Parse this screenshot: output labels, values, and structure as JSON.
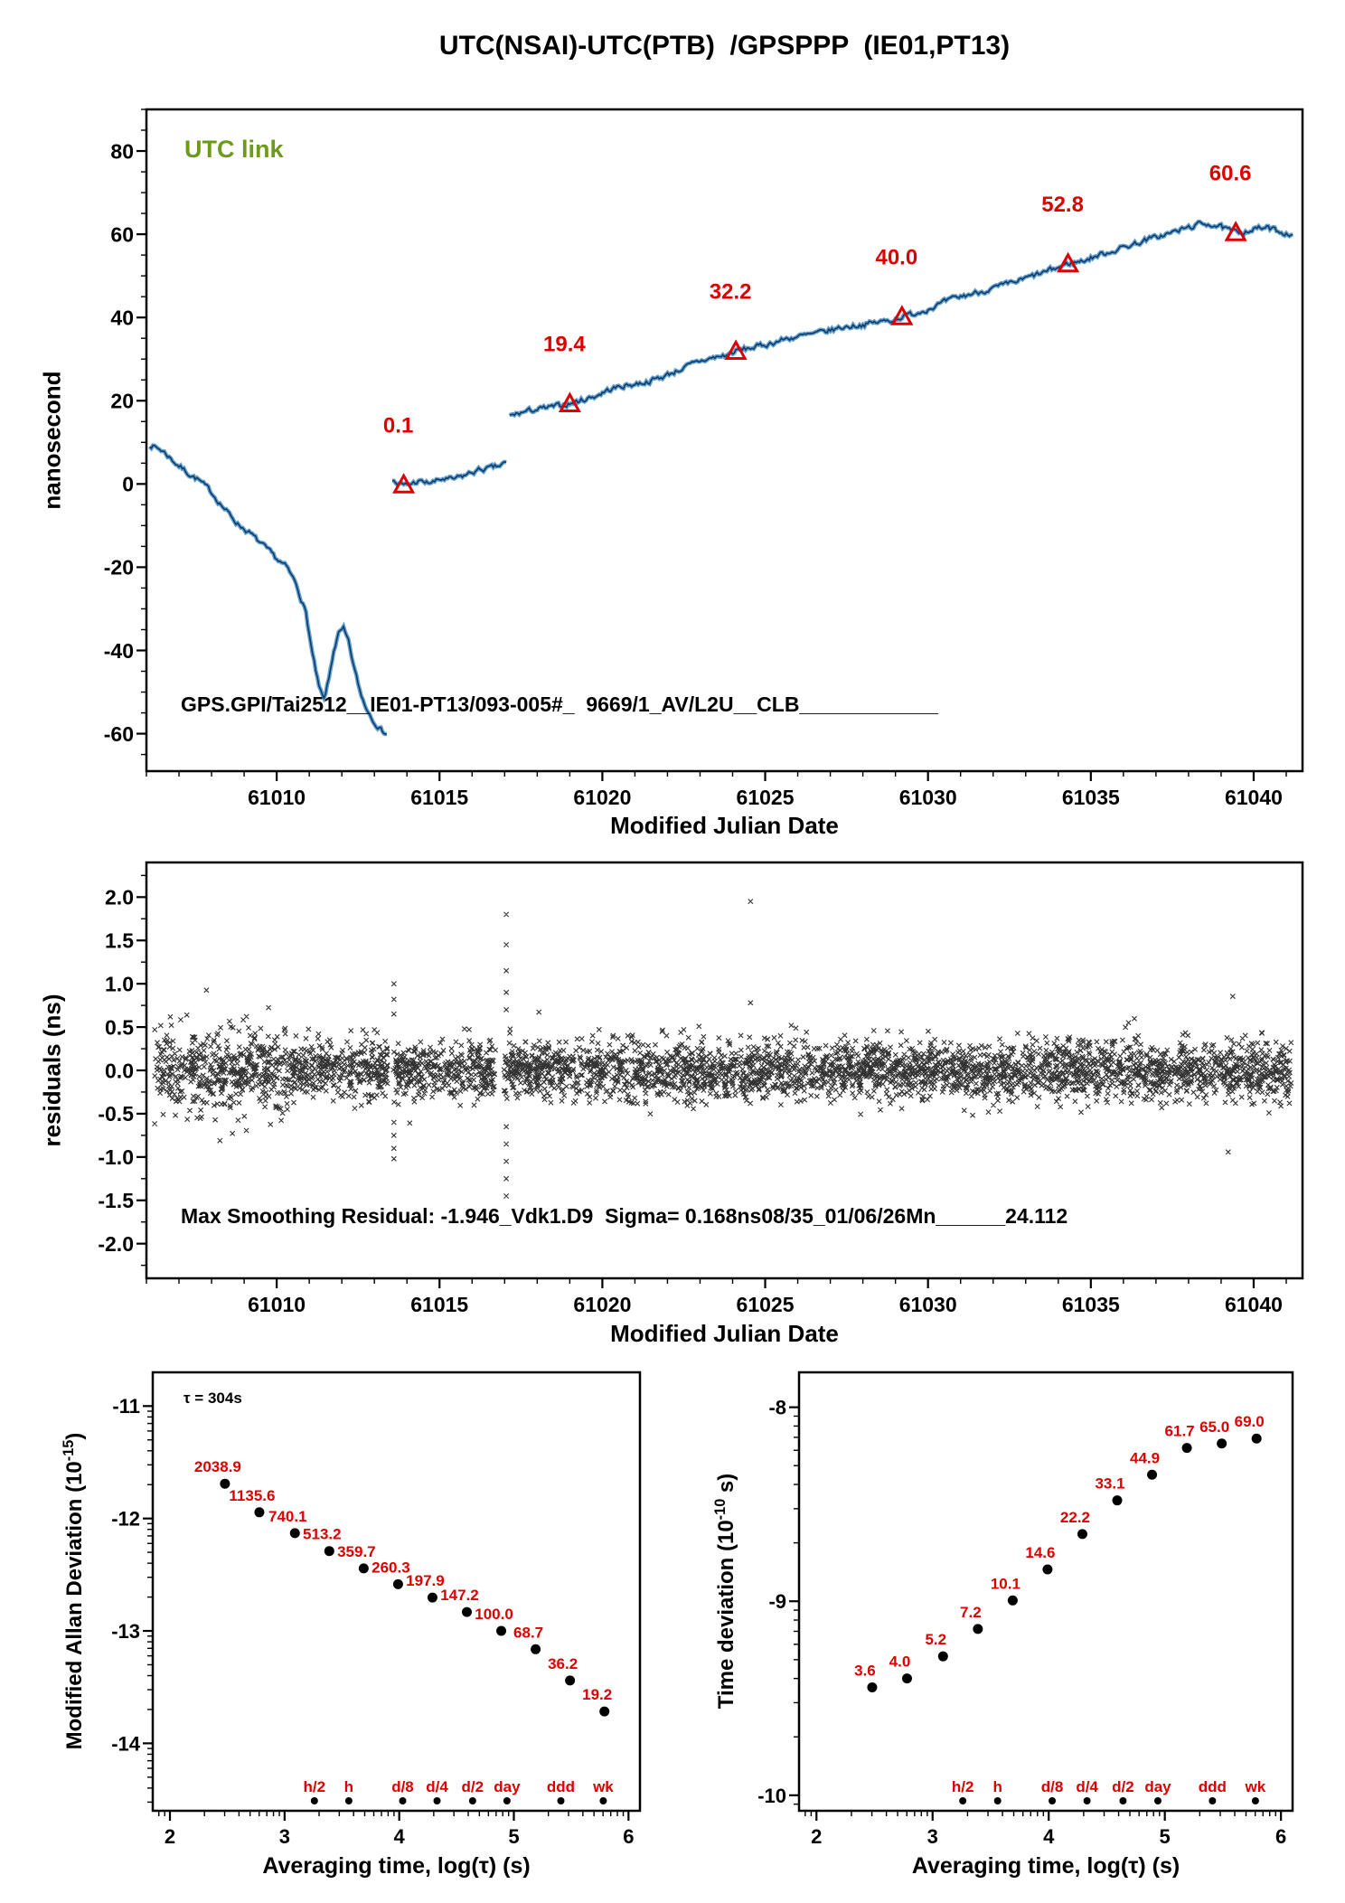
{
  "page": {
    "title": "UTC(NSAI)-UTC(PTB)  /GPSPPP  (IE01,PT13)"
  },
  "colors": {
    "red": "#dd0000",
    "green": "#6b9b17",
    "curve_outer": "#4490cc",
    "curve_core": "#0b2f58",
    "black": "#000000"
  },
  "chart_data": [
    {
      "id": "phase",
      "type": "line",
      "title": "UTC(NSAI)-UTC(PTB)  /GPSPPP  (IE01,PT13)",
      "xlabel": "Modified Julian Date",
      "ylabel": "nanosecond",
      "legend": "UTC link",
      "annotation": "GPS.GPI/Tai2512__IE01-PT13/093-005#_  9669/1_AV/L2U__CLB____________",
      "xlim": [
        61006,
        61041.5
      ],
      "ylim": [
        -69,
        90
      ],
      "xticks": [
        61010,
        61015,
        61020,
        61025,
        61030,
        61035,
        61040
      ],
      "yticks": [
        -60,
        -40,
        -20,
        0,
        20,
        40,
        60,
        80
      ],
      "series": [
        {
          "name": "segment-1",
          "points": [
            [
              61006.1,
              9.5
            ],
            [
              61006.5,
              8
            ],
            [
              61006.9,
              5
            ],
            [
              61007.3,
              2.5
            ],
            [
              61007.6,
              1
            ],
            [
              61008,
              -2
            ],
            [
              61008.4,
              -6
            ],
            [
              61008.8,
              -9.5
            ],
            [
              61009.2,
              -12
            ],
            [
              61009.6,
              -15
            ],
            [
              61010,
              -18
            ],
            [
              61010.3,
              -20
            ],
            [
              61010.6,
              -24
            ],
            [
              61010.9,
              -31
            ],
            [
              61011.1,
              -41
            ],
            [
              61011.3,
              -49
            ],
            [
              61011.45,
              -52
            ],
            [
              61011.6,
              -47
            ],
            [
              61011.75,
              -40
            ],
            [
              61011.9,
              -36
            ],
            [
              61012.05,
              -35
            ],
            [
              61012.2,
              -38
            ],
            [
              61012.4,
              -45
            ],
            [
              61012.6,
              -51
            ],
            [
              61012.8,
              -54.5
            ],
            [
              61013,
              -57
            ],
            [
              61013.2,
              -59
            ],
            [
              61013.38,
              -60
            ]
          ]
        },
        {
          "name": "segment-2",
          "points": [
            [
              61013.55,
              0.8
            ],
            [
              61013.7,
              0
            ],
            [
              61013.9,
              -0.4
            ],
            [
              61014.1,
              0
            ],
            [
              61014.35,
              0.6
            ],
            [
              61014.6,
              0.2
            ],
            [
              61014.85,
              0.5
            ],
            [
              61015.1,
              1.2
            ],
            [
              61015.4,
              1
            ],
            [
              61015.7,
              1.8
            ],
            [
              61016,
              2.8
            ],
            [
              61016.3,
              3.5
            ],
            [
              61016.6,
              3.8
            ],
            [
              61016.85,
              4.3
            ],
            [
              61017.05,
              5.2
            ]
          ]
        },
        {
          "name": "segment-3",
          "points": [
            [
              61017.15,
              16.3
            ],
            [
              61017.5,
              17.1
            ],
            [
              61017.9,
              17.8
            ],
            [
              61018.3,
              18.2
            ],
            [
              61018.7,
              18.8
            ],
            [
              61019,
              19.3
            ],
            [
              61019.4,
              20.2
            ],
            [
              61019.8,
              21.2
            ],
            [
              61020.2,
              22.6
            ],
            [
              61020.6,
              23.5
            ],
            [
              61021,
              24
            ],
            [
              61021.4,
              24.6
            ],
            [
              61021.8,
              25.6
            ],
            [
              61022.2,
              26.9
            ],
            [
              61022.6,
              28.2
            ],
            [
              61023,
              29.5
            ],
            [
              61023.4,
              30.3
            ],
            [
              61023.8,
              30.9
            ],
            [
              61024.1,
              31.9
            ],
            [
              61024.5,
              32.6
            ],
            [
              61024.9,
              33.2
            ],
            [
              61025.3,
              34.1
            ],
            [
              61025.7,
              35
            ],
            [
              61026.1,
              35.5
            ],
            [
              61026.5,
              36
            ],
            [
              61026.9,
              36.7
            ],
            [
              61027.3,
              37.5
            ],
            [
              61027.7,
              38
            ],
            [
              61028.1,
              38.4
            ],
            [
              61028.5,
              38.9
            ],
            [
              61028.9,
              39.4
            ],
            [
              61029.2,
              40.2
            ],
            [
              61029.6,
              41
            ],
            [
              61030,
              42.1
            ],
            [
              61030.4,
              43.3
            ],
            [
              61030.8,
              44.5
            ],
            [
              61031.2,
              45.4
            ],
            [
              61031.6,
              46.2
            ],
            [
              61032,
              47
            ],
            [
              61032.4,
              47.8
            ],
            [
              61032.8,
              48.8
            ],
            [
              61033.2,
              49.9
            ],
            [
              61033.6,
              50.9
            ],
            [
              61034,
              52
            ],
            [
              61034.3,
              52.9
            ],
            [
              61034.7,
              53.5
            ],
            [
              61035.1,
              54.6
            ],
            [
              61035.5,
              55.6
            ],
            [
              61035.9,
              56.6
            ],
            [
              61036.3,
              57.6
            ],
            [
              61036.7,
              58.6
            ],
            [
              61037.1,
              59.5
            ],
            [
              61037.5,
              60.4
            ],
            [
              61037.9,
              61.4
            ],
            [
              61038.3,
              62.3
            ],
            [
              61038.6,
              62.6
            ],
            [
              61038.9,
              62
            ],
            [
              61039.2,
              61
            ],
            [
              61039.45,
              60.4
            ],
            [
              61039.8,
              60.9
            ],
            [
              61040.1,
              61.4
            ],
            [
              61040.4,
              61.5
            ],
            [
              61040.7,
              60.9
            ],
            [
              61041,
              60.2
            ],
            [
              61041.2,
              60
            ]
          ]
        }
      ],
      "calibration_markers": [
        {
          "x": 61013.9,
          "y": -0.2,
          "label": "0.1"
        },
        {
          "x": 61019.0,
          "y": 19.3,
          "label": "19.4"
        },
        {
          "x": 61024.1,
          "y": 31.9,
          "label": "32.2"
        },
        {
          "x": 61029.2,
          "y": 40.2,
          "label": "40.0"
        },
        {
          "x": 61034.3,
          "y": 52.9,
          "label": "52.8"
        },
        {
          "x": 61039.45,
          "y": 60.4,
          "label": "60.6"
        }
      ]
    },
    {
      "id": "residuals",
      "type": "scatter",
      "xlabel": "Modified Julian Date",
      "ylabel": "residuals (ns)",
      "annotation": "Max Smoothing Residual: -1.946_Vdk1.D9  Sigma= 0.168ns08/35_01/06/26Mn______24.112",
      "max_smoothing_residual_ns": -1.946,
      "sigma_ns": 0.168,
      "xlim": [
        61006,
        61041.5
      ],
      "ylim": [
        -2.4,
        2.4
      ],
      "xticks": [
        61010,
        61015,
        61020,
        61025,
        61030,
        61035,
        61040
      ],
      "yticks": [
        2.0,
        1.5,
        1.0,
        0.5,
        0.0,
        -0.5,
        -1.0,
        -1.5,
        -2.0
      ],
      "ytick_labels": [
        "2.0",
        "1.5",
        "1.0",
        "0.5",
        "0.0",
        "-0.5",
        "-1.0",
        "-1.5",
        "-2.0"
      ],
      "noise": {
        "n_points": 4200,
        "sigma_main": 0.165,
        "sigma_left": 0.24,
        "left_boundary": 61010.5,
        "seed": 42
      },
      "outlier_columns": [
        {
          "x": 61013.6,
          "ys": [
            1.0,
            0.82,
            0.65,
            -0.6,
            -0.75,
            -0.9,
            -1.02
          ]
        },
        {
          "x": 61017.05,
          "ys": [
            1.8,
            1.45,
            1.15,
            0.9,
            0.7,
            -0.65,
            -0.85,
            -1.05,
            -1.25,
            -1.45
          ]
        },
        {
          "x": 61024.55,
          "ys": [
            1.95,
            0.78
          ]
        }
      ]
    },
    {
      "id": "mdev",
      "type": "scatter",
      "xlabel": "Averaging time, log(τ) (s)",
      "ylabel_parts": {
        "prefix": "Modified Allan Deviation (10",
        "sup": "-15",
        "suffix": ")"
      },
      "tau_note": "τ = 304s",
      "scale_exponent": -15,
      "xlim": [
        1.85,
        6.1
      ],
      "ylim": [
        -14.6,
        -10.7
      ],
      "xticks": [
        2,
        3,
        4,
        5,
        6
      ],
      "yticks": [
        -11,
        -12,
        -13,
        -14
      ],
      "log_tau": [
        2.48,
        2.78,
        3.09,
        3.39,
        3.69,
        3.99,
        4.29,
        4.59,
        4.89,
        5.19,
        5.49,
        5.79
      ],
      "values": [
        2038.9,
        1135.6,
        740.1,
        513.2,
        359.7,
        260.3,
        197.9,
        147.2,
        100.0,
        68.7,
        36.2,
        19.2
      ],
      "time_markers": [
        {
          "label": "h/2",
          "log_tau": 3.26
        },
        {
          "label": "h",
          "log_tau": 3.56
        },
        {
          "label": "d/8",
          "log_tau": 4.03
        },
        {
          "label": "d/4",
          "log_tau": 4.33
        },
        {
          "label": "d/2",
          "log_tau": 4.64
        },
        {
          "label": "day",
          "log_tau": 4.94
        },
        {
          "label": "ddd",
          "log_tau": 5.41
        },
        {
          "label": "wk",
          "log_tau": 5.78
        }
      ]
    },
    {
      "id": "tdev",
      "type": "scatter",
      "xlabel": "Averaging time, log(τ) (s)",
      "ylabel_parts": {
        "prefix": "Time deviation (10",
        "sup": "-10",
        "suffix": " s)"
      },
      "scale_exponent": -10,
      "xlim": [
        1.85,
        6.1
      ],
      "ylim": [
        -10.08,
        -7.82
      ],
      "xticks": [
        2,
        3,
        4,
        5,
        6
      ],
      "yticks": [
        -8,
        -9,
        -10
      ],
      "log_tau": [
        2.48,
        2.78,
        3.09,
        3.39,
        3.69,
        3.99,
        4.29,
        4.59,
        4.89,
        5.19,
        5.49,
        5.79
      ],
      "values": [
        3.6,
        4.0,
        5.2,
        7.2,
        10.1,
        14.6,
        22.2,
        33.1,
        44.9,
        61.7,
        65.0,
        69.0
      ],
      "time_markers": [
        {
          "label": "h/2",
          "log_tau": 3.26
        },
        {
          "label": "h",
          "log_tau": 3.56
        },
        {
          "label": "d/8",
          "log_tau": 4.03
        },
        {
          "label": "d/4",
          "log_tau": 4.33
        },
        {
          "label": "d/2",
          "log_tau": 4.64
        },
        {
          "label": "day",
          "log_tau": 4.94
        },
        {
          "label": "ddd",
          "log_tau": 5.41
        },
        {
          "label": "wk",
          "log_tau": 5.78
        }
      ]
    }
  ]
}
